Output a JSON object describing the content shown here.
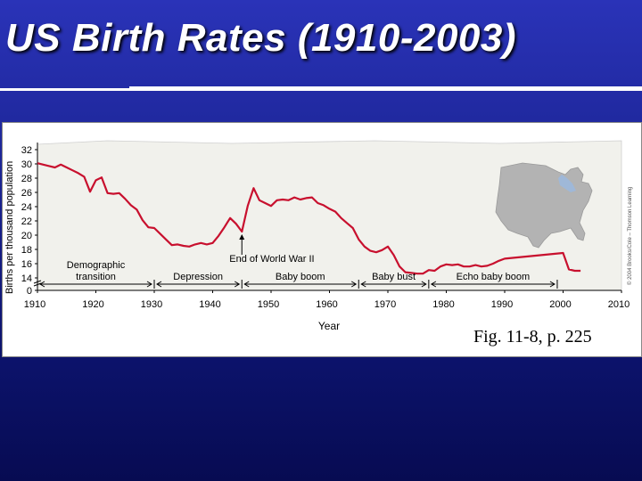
{
  "slide": {
    "title": "US Birth Rates (1910-2003)",
    "caption": "Fig. 11-8, p. 225",
    "credit": "© 2004 Brooks/Cole – Thomson Learning"
  },
  "colors": {
    "background": "#1c2596",
    "line": "#c8102e",
    "plot_background": "#f1f1ec",
    "map": "#b3b3b3",
    "lakes": "#9fb8d8"
  },
  "icons": {
    "inset_map": "us-map-icon"
  },
  "chart_data": {
    "type": "line",
    "title": "",
    "xlabel": "Year",
    "ylabel": "Births per thousand population",
    "xlim": [
      1910,
      2010
    ],
    "ylim": [
      0,
      32
    ],
    "y_axis_break": true,
    "x_ticks": [
      1910,
      1920,
      1930,
      1940,
      1950,
      1960,
      1970,
      1980,
      1990,
      2000,
      2010
    ],
    "y_ticks": [
      0,
      14,
      16,
      18,
      20,
      22,
      24,
      26,
      28,
      30,
      32
    ],
    "grid": false,
    "series": [
      {
        "name": "",
        "x": [
          1910,
          1911,
          1912,
          1913,
          1914,
          1915,
          1916,
          1917,
          1918,
          1919,
          1920,
          1921,
          1922,
          1923,
          1924,
          1925,
          1926,
          1927,
          1928,
          1929,
          1930,
          1931,
          1932,
          1933,
          1934,
          1935,
          1936,
          1937,
          1938,
          1939,
          1940,
          1941,
          1942,
          1943,
          1944,
          1945,
          1946,
          1947,
          1948,
          1949,
          1950,
          1951,
          1952,
          1953,
          1954,
          1955,
          1956,
          1957,
          1958,
          1959,
          1960,
          1961,
          1962,
          1963,
          1964,
          1965,
          1966,
          1967,
          1968,
          1969,
          1970,
          1971,
          1972,
          1973,
          1974,
          1975,
          1976,
          1977,
          1978,
          1979,
          1980,
          1981,
          1982,
          1983,
          1984,
          1985,
          1986,
          1987,
          1988,
          1989,
          1990,
          2000,
          2001,
          2002,
          2003
        ],
        "y": [
          30.1,
          29.9,
          29.7,
          29.5,
          29.9,
          29.5,
          29.1,
          28.7,
          28.2,
          26.1,
          27.7,
          28.1,
          25.9,
          25.8,
          25.9,
          25.1,
          24.2,
          23.6,
          22.1,
          21.1,
          21.0,
          20.2,
          19.4,
          18.6,
          18.7,
          18.5,
          18.4,
          18.7,
          18.9,
          18.7,
          18.9,
          19.9,
          21.1,
          22.4,
          21.6,
          20.5,
          24.1,
          26.6,
          24.9,
          24.5,
          24.1,
          24.9,
          25.0,
          24.9,
          25.3,
          25.0,
          25.2,
          25.3,
          24.5,
          24.2,
          23.7,
          23.3,
          22.4,
          21.7,
          21.0,
          19.4,
          18.4,
          17.8,
          17.6,
          17.9,
          18.4,
          17.2,
          15.6,
          14.8,
          14.7,
          14.6,
          14.6,
          15.1,
          15.0,
          15.6,
          15.9,
          15.8,
          15.9,
          15.6,
          15.6,
          15.8,
          15.6,
          15.7,
          16.0,
          16.4,
          16.7,
          17.5,
          15.2,
          15.0,
          15.0
        ]
      }
    ],
    "annotations": [
      {
        "text": "Demographic transition",
        "x_range": [
          1910,
          1930
        ]
      },
      {
        "text": "Depression",
        "x_range": [
          1930,
          1945
        ]
      },
      {
        "text": "End of World War II",
        "x": 1945
      },
      {
        "text": "Baby boom",
        "x_range": [
          1945,
          1965
        ]
      },
      {
        "text": "Baby bust",
        "x_range": [
          1965,
          1977
        ]
      },
      {
        "text": "Echo baby boom",
        "x_range": [
          1977,
          1999
        ]
      }
    ]
  }
}
